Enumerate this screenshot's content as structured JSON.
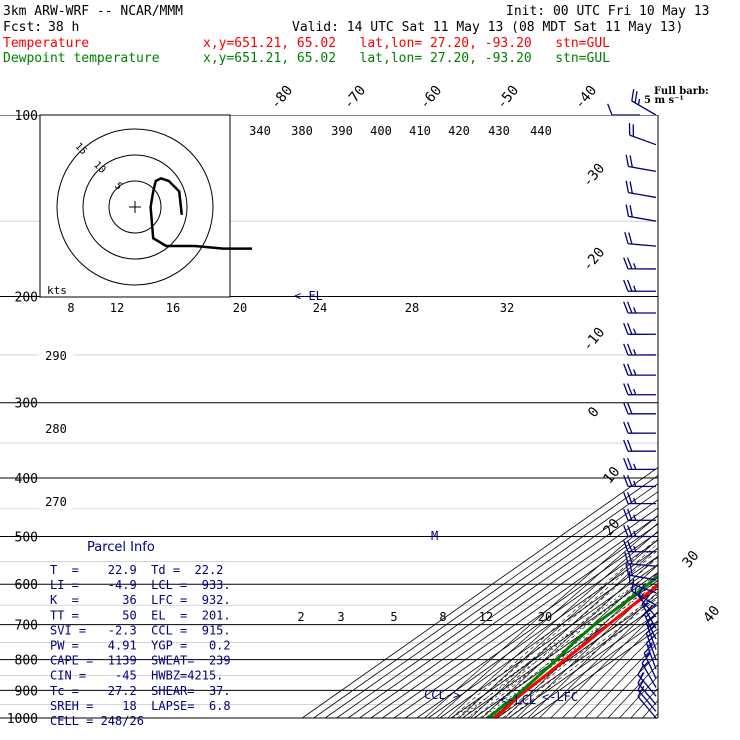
{
  "header": {
    "title": "3km ARW-WRF -- NCAR/MMM",
    "init": "Init: 00 UTC Fri 10 May 13",
    "fcst_label": "Fcst:",
    "fcst_value": "38 h",
    "valid": "Valid: 14 UTC Sat 11 May 13 (08 MDT Sat 11 May 13)",
    "temp_label": "Temperature",
    "temp_info": "x,y=651.21, 65.02   lat,lon= 27.20, -93.20   stn=GUL",
    "dew_label": "Dewpoint temperature",
    "dew_info": "x,y=651.21, 65.02   lat,lon= 27.20, -93.20   stn=GUL",
    "temp_color": "#ff0000",
    "dew_color": "#008000"
  },
  "barb_legend": {
    "title": "Full barb:",
    "value": "5 m s⁻¹"
  },
  "hodograph": {
    "units": "kts",
    "ring_labels": [
      "5",
      "10",
      "15"
    ],
    "trace_uv": [
      [
        1.8,
        -0.3
      ],
      [
        1.7,
        0.6
      ],
      [
        1.3,
        1.0
      ],
      [
        1.0,
        1.1
      ],
      [
        0.8,
        1.0
      ],
      [
        0.7,
        0.6
      ],
      [
        0.6,
        0.0
      ],
      [
        0.7,
        -1.2
      ],
      [
        1.2,
        -1.5
      ],
      [
        2.3,
        -1.5
      ],
      [
        3.4,
        -1.6
      ],
      [
        4.5,
        -1.6
      ]
    ]
  },
  "parcel_info": {
    "title": "Parcel Info",
    "rows": [
      "T  =    22.9  Td =  22.2",
      "LI =    -4.9  LCL =  933.",
      "K  =      36  LFC =  932.",
      "TT =      50  EL  =  201.",
      "SVI =   -2.3  CCL =  915.",
      "PW =    4.91  YGP =   0.2",
      "CAPE =  1139  SWEAT=  239",
      "CIN =    -45  HWBZ=4215.",
      "Tc =    27.2  SHEAR=  37.",
      "SREH =    18  LAPSE=  6.8",
      "CELL = 248/26"
    ]
  },
  "chart_data": {
    "type": "line",
    "title": "",
    "xlabel": "",
    "ylabel": "",
    "pressure_ticks": [
      100,
      200,
      300,
      400,
      500,
      600,
      700,
      800,
      900,
      1000
    ],
    "pressure_labels": [
      "100",
      "200",
      "300",
      "400",
      "500",
      "600",
      "700",
      "800",
      "900",
      "1000"
    ],
    "isotherm_labels": [
      "-80",
      "-70",
      "-60",
      "-50",
      "-40",
      "-30",
      "-20",
      "-10",
      "0",
      "10",
      "20",
      "30",
      "40"
    ],
    "theta_labels": [
      "340",
      "380",
      "390",
      "400",
      "410",
      "420",
      "430",
      "440",
      "290",
      "280",
      "270"
    ],
    "mixing_ratio_labels": [
      "2",
      "3",
      "5",
      "8",
      "12",
      "20"
    ],
    "theta_e_labels": [
      "8",
      "12",
      "16",
      "20",
      "24",
      "28",
      "32"
    ],
    "annotations": [
      "<-EL",
      "CCL->",
      "<-LCL",
      "<-LFC",
      "M"
    ],
    "series": [
      {
        "name": "Temperature",
        "color": "#ff0000",
        "points": [
          [
            1000,
            27.2
          ],
          [
            975,
            26.5
          ],
          [
            950,
            24.8
          ],
          [
            925,
            22.4
          ],
          [
            900,
            21.3
          ],
          [
            850,
            19.6
          ],
          [
            800,
            16.9
          ],
          [
            750,
            14.6
          ],
          [
            700,
            11.5
          ],
          [
            650,
            8.6
          ],
          [
            600,
            5.6
          ],
          [
            550,
            1.9
          ],
          [
            500,
            -2.6
          ],
          [
            450,
            -7.8
          ],
          [
            400,
            -13.6
          ],
          [
            350,
            -20.6
          ],
          [
            300,
            -28.9
          ],
          [
            250,
            -39.3
          ],
          [
            200,
            -52.5
          ],
          [
            175,
            -60.8
          ],
          [
            150,
            -68.8
          ],
          [
            130,
            -72.6
          ],
          [
            115,
            -74.6
          ],
          [
            100,
            -73.8
          ]
        ]
      },
      {
        "name": "Dewpoint temperature",
        "color": "#008000",
        "points": [
          [
            1000,
            22.2
          ],
          [
            950,
            20.1
          ],
          [
            925,
            19.7
          ],
          [
            900,
            17.8
          ],
          [
            850,
            14.0
          ],
          [
            800,
            9.5
          ],
          [
            750,
            3.4
          ],
          [
            700,
            -0.6
          ],
          [
            650,
            -1.4
          ],
          [
            600,
            -3.9
          ],
          [
            550,
            -6.0
          ],
          [
            500,
            -8.2
          ],
          [
            450,
            -15.1
          ],
          [
            400,
            -23.2
          ],
          [
            350,
            -35.4
          ],
          [
            320,
            -45.4
          ],
          [
            300,
            -47.9
          ],
          [
            275,
            -48.7
          ],
          [
            250,
            -53.5
          ],
          [
            225,
            -55.8
          ],
          [
            200,
            -60.5
          ],
          [
            175,
            -67.3
          ],
          [
            150,
            -78.3
          ],
          [
            130,
            -85.4
          ],
          [
            115,
            -90.0
          ],
          [
            100,
            -93.0
          ]
        ]
      }
    ],
    "wind_barbs": [
      {
        "p": 100,
        "dir": 300,
        "kts": 25
      },
      {
        "p": 112,
        "dir": 290,
        "kts": 20
      },
      {
        "p": 124,
        "dir": 280,
        "kts": 20
      },
      {
        "p": 137,
        "dir": 280,
        "kts": 20
      },
      {
        "p": 150,
        "dir": 280,
        "kts": 20
      },
      {
        "p": 165,
        "dir": 275,
        "kts": 20
      },
      {
        "p": 180,
        "dir": 270,
        "kts": 25
      },
      {
        "p": 196,
        "dir": 270,
        "kts": 25
      },
      {
        "p": 213,
        "dir": 270,
        "kts": 25
      },
      {
        "p": 231,
        "dir": 270,
        "kts": 25
      },
      {
        "p": 250,
        "dir": 270,
        "kts": 25
      },
      {
        "p": 270,
        "dir": 270,
        "kts": 25
      },
      {
        "p": 291,
        "dir": 270,
        "kts": 25
      },
      {
        "p": 313,
        "dir": 270,
        "kts": 20
      },
      {
        "p": 337,
        "dir": 270,
        "kts": 20
      },
      {
        "p": 361,
        "dir": 270,
        "kts": 20
      },
      {
        "p": 387,
        "dir": 270,
        "kts": 25
      },
      {
        "p": 413,
        "dir": 270,
        "kts": 25
      },
      {
        "p": 441,
        "dir": 270,
        "kts": 25
      },
      {
        "p": 470,
        "dir": 270,
        "kts": 25
      },
      {
        "p": 500,
        "dir": 270,
        "kts": 25
      },
      {
        "p": 530,
        "dir": 270,
        "kts": 25
      },
      {
        "p": 560,
        "dir": 275,
        "kts": 20
      },
      {
        "p": 590,
        "dir": 280,
        "kts": 20
      },
      {
        "p": 620,
        "dir": 290,
        "kts": 15
      },
      {
        "p": 650,
        "dir": 300,
        "kts": 15
      },
      {
        "p": 680,
        "dir": 320,
        "kts": 15
      },
      {
        "p": 710,
        "dir": 330,
        "kts": 15
      },
      {
        "p": 740,
        "dir": 335,
        "kts": 15
      },
      {
        "p": 770,
        "dir": 340,
        "kts": 15
      },
      {
        "p": 800,
        "dir": 340,
        "kts": 15
      },
      {
        "p": 830,
        "dir": 340,
        "kts": 15
      },
      {
        "p": 860,
        "dir": 335,
        "kts": 15
      },
      {
        "p": 890,
        "dir": 330,
        "kts": 15
      },
      {
        "p": 920,
        "dir": 320,
        "kts": 15
      },
      {
        "p": 950,
        "dir": 320,
        "kts": 10
      },
      {
        "p": 975,
        "dir": 320,
        "kts": 10
      },
      {
        "p": 1000,
        "dir": 320,
        "kts": 10
      }
    ]
  }
}
